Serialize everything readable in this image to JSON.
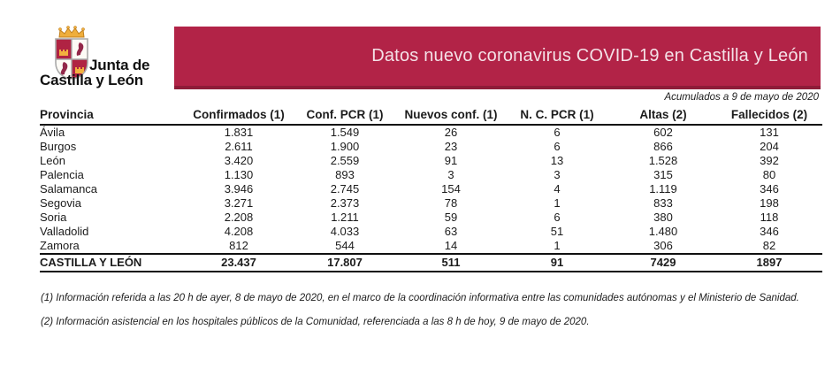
{
  "logo": {
    "line1": "Junta de",
    "line2": "Castilla y León"
  },
  "banner": {
    "title": "Datos nuevo coronavirus COVID-19 en Castilla y León",
    "background_color": "#B22347",
    "border_color": "#8E1C38",
    "text_color": "#F4E1E7"
  },
  "subtitle": "Acumulados a 9 de mayo de 2020",
  "table": {
    "columns": [
      "Provincia",
      "Confirmados (1)",
      "Conf. PCR (1)",
      "Nuevos conf. (1)",
      "N. C. PCR (1)",
      "Altas (2)",
      "Fallecidos (2)"
    ],
    "rows": [
      [
        "Ávila",
        "1.831",
        "1.549",
        "26",
        "6",
        "602",
        "131"
      ],
      [
        "Burgos",
        "2.611",
        "1.900",
        "23",
        "6",
        "866",
        "204"
      ],
      [
        "León",
        "3.420",
        "2.559",
        "91",
        "13",
        "1.528",
        "392"
      ],
      [
        "Palencia",
        "1.130",
        "893",
        "3",
        "3",
        "315",
        "80"
      ],
      [
        "Salamanca",
        "3.946",
        "2.745",
        "154",
        "4",
        "1.119",
        "346"
      ],
      [
        "Segovia",
        "3.271",
        "2.373",
        "78",
        "1",
        "833",
        "198"
      ],
      [
        "Soria",
        "2.208",
        "1.211",
        "59",
        "6",
        "380",
        "118"
      ],
      [
        "Valladolid",
        "4.208",
        "4.033",
        "63",
        "51",
        "1.480",
        "346"
      ],
      [
        "Zamora",
        "812",
        "544",
        "14",
        "1",
        "306",
        "82"
      ]
    ],
    "total": [
      "CASTILLA Y LEÓN",
      "23.437",
      "17.807",
      "511",
      "91",
      "7429",
      "1897"
    ]
  },
  "footnotes": [
    "(1) Información referida a las 20 h de ayer, 8 de mayo de 2020, en el marco de la coordinación informativa entre las comunidades autónomas y el Ministerio de Sanidad.",
    "(2) Información asistencial en los hospitales públicos de la Comunidad, referenciada a las 8 h de hoy, 9 de mayo de 2020."
  ]
}
